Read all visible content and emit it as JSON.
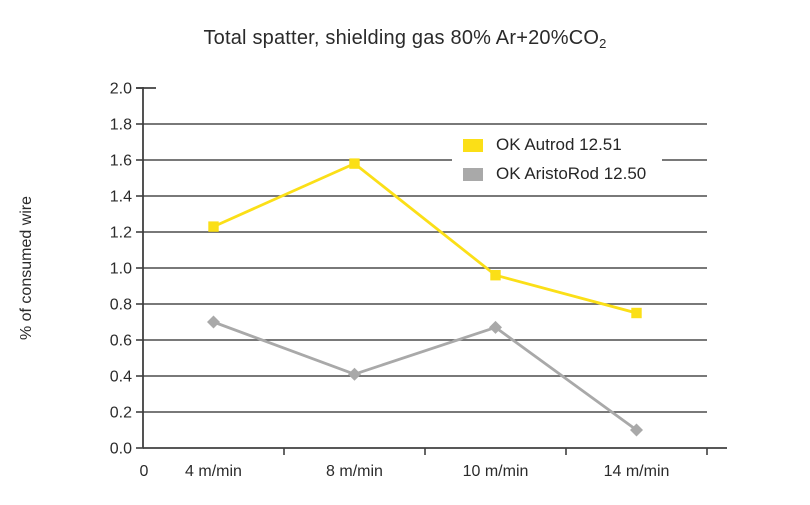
{
  "header": {
    "title_text": "Total spatter, shielding gas 80% Ar+20%CO",
    "title_sub": "2"
  },
  "chart_data": {
    "type": "line",
    "title": "Total spatter, shielding gas 80% Ar+20%CO₂",
    "ylabel": "% of consumed wire",
    "xlabel": "",
    "origin_label": "0",
    "categories": [
      "4 m/min",
      "8 m/min",
      "10 m/min",
      "14 m/min"
    ],
    "series": [
      {
        "name": "OK Autrod 12.51",
        "color": "#FBDF17",
        "marker": "square",
        "values": [
          1.23,
          1.58,
          0.96,
          0.75
        ]
      },
      {
        "name": "OK AristoRod 12.50",
        "color": "#A9A9A9",
        "marker": "diamond",
        "values": [
          0.7,
          0.41,
          0.67,
          0.1
        ]
      }
    ],
    "ylim": [
      0.0,
      2.0
    ],
    "ytick_step": 0.2,
    "y_ticks": [
      "0.0",
      "0.2",
      "0.4",
      "0.6",
      "0.8",
      "1.0",
      "1.2",
      "1.4",
      "1.6",
      "1.8",
      "2.0"
    ],
    "grid": true,
    "legend_position": "top-right"
  },
  "colors": {
    "background": "#ffffff",
    "grid": "#4d4d4d",
    "axis": "#404040",
    "text": "#2b2b2b",
    "series_yellow": "#FBDF17",
    "series_gray": "#A9A9A9"
  }
}
